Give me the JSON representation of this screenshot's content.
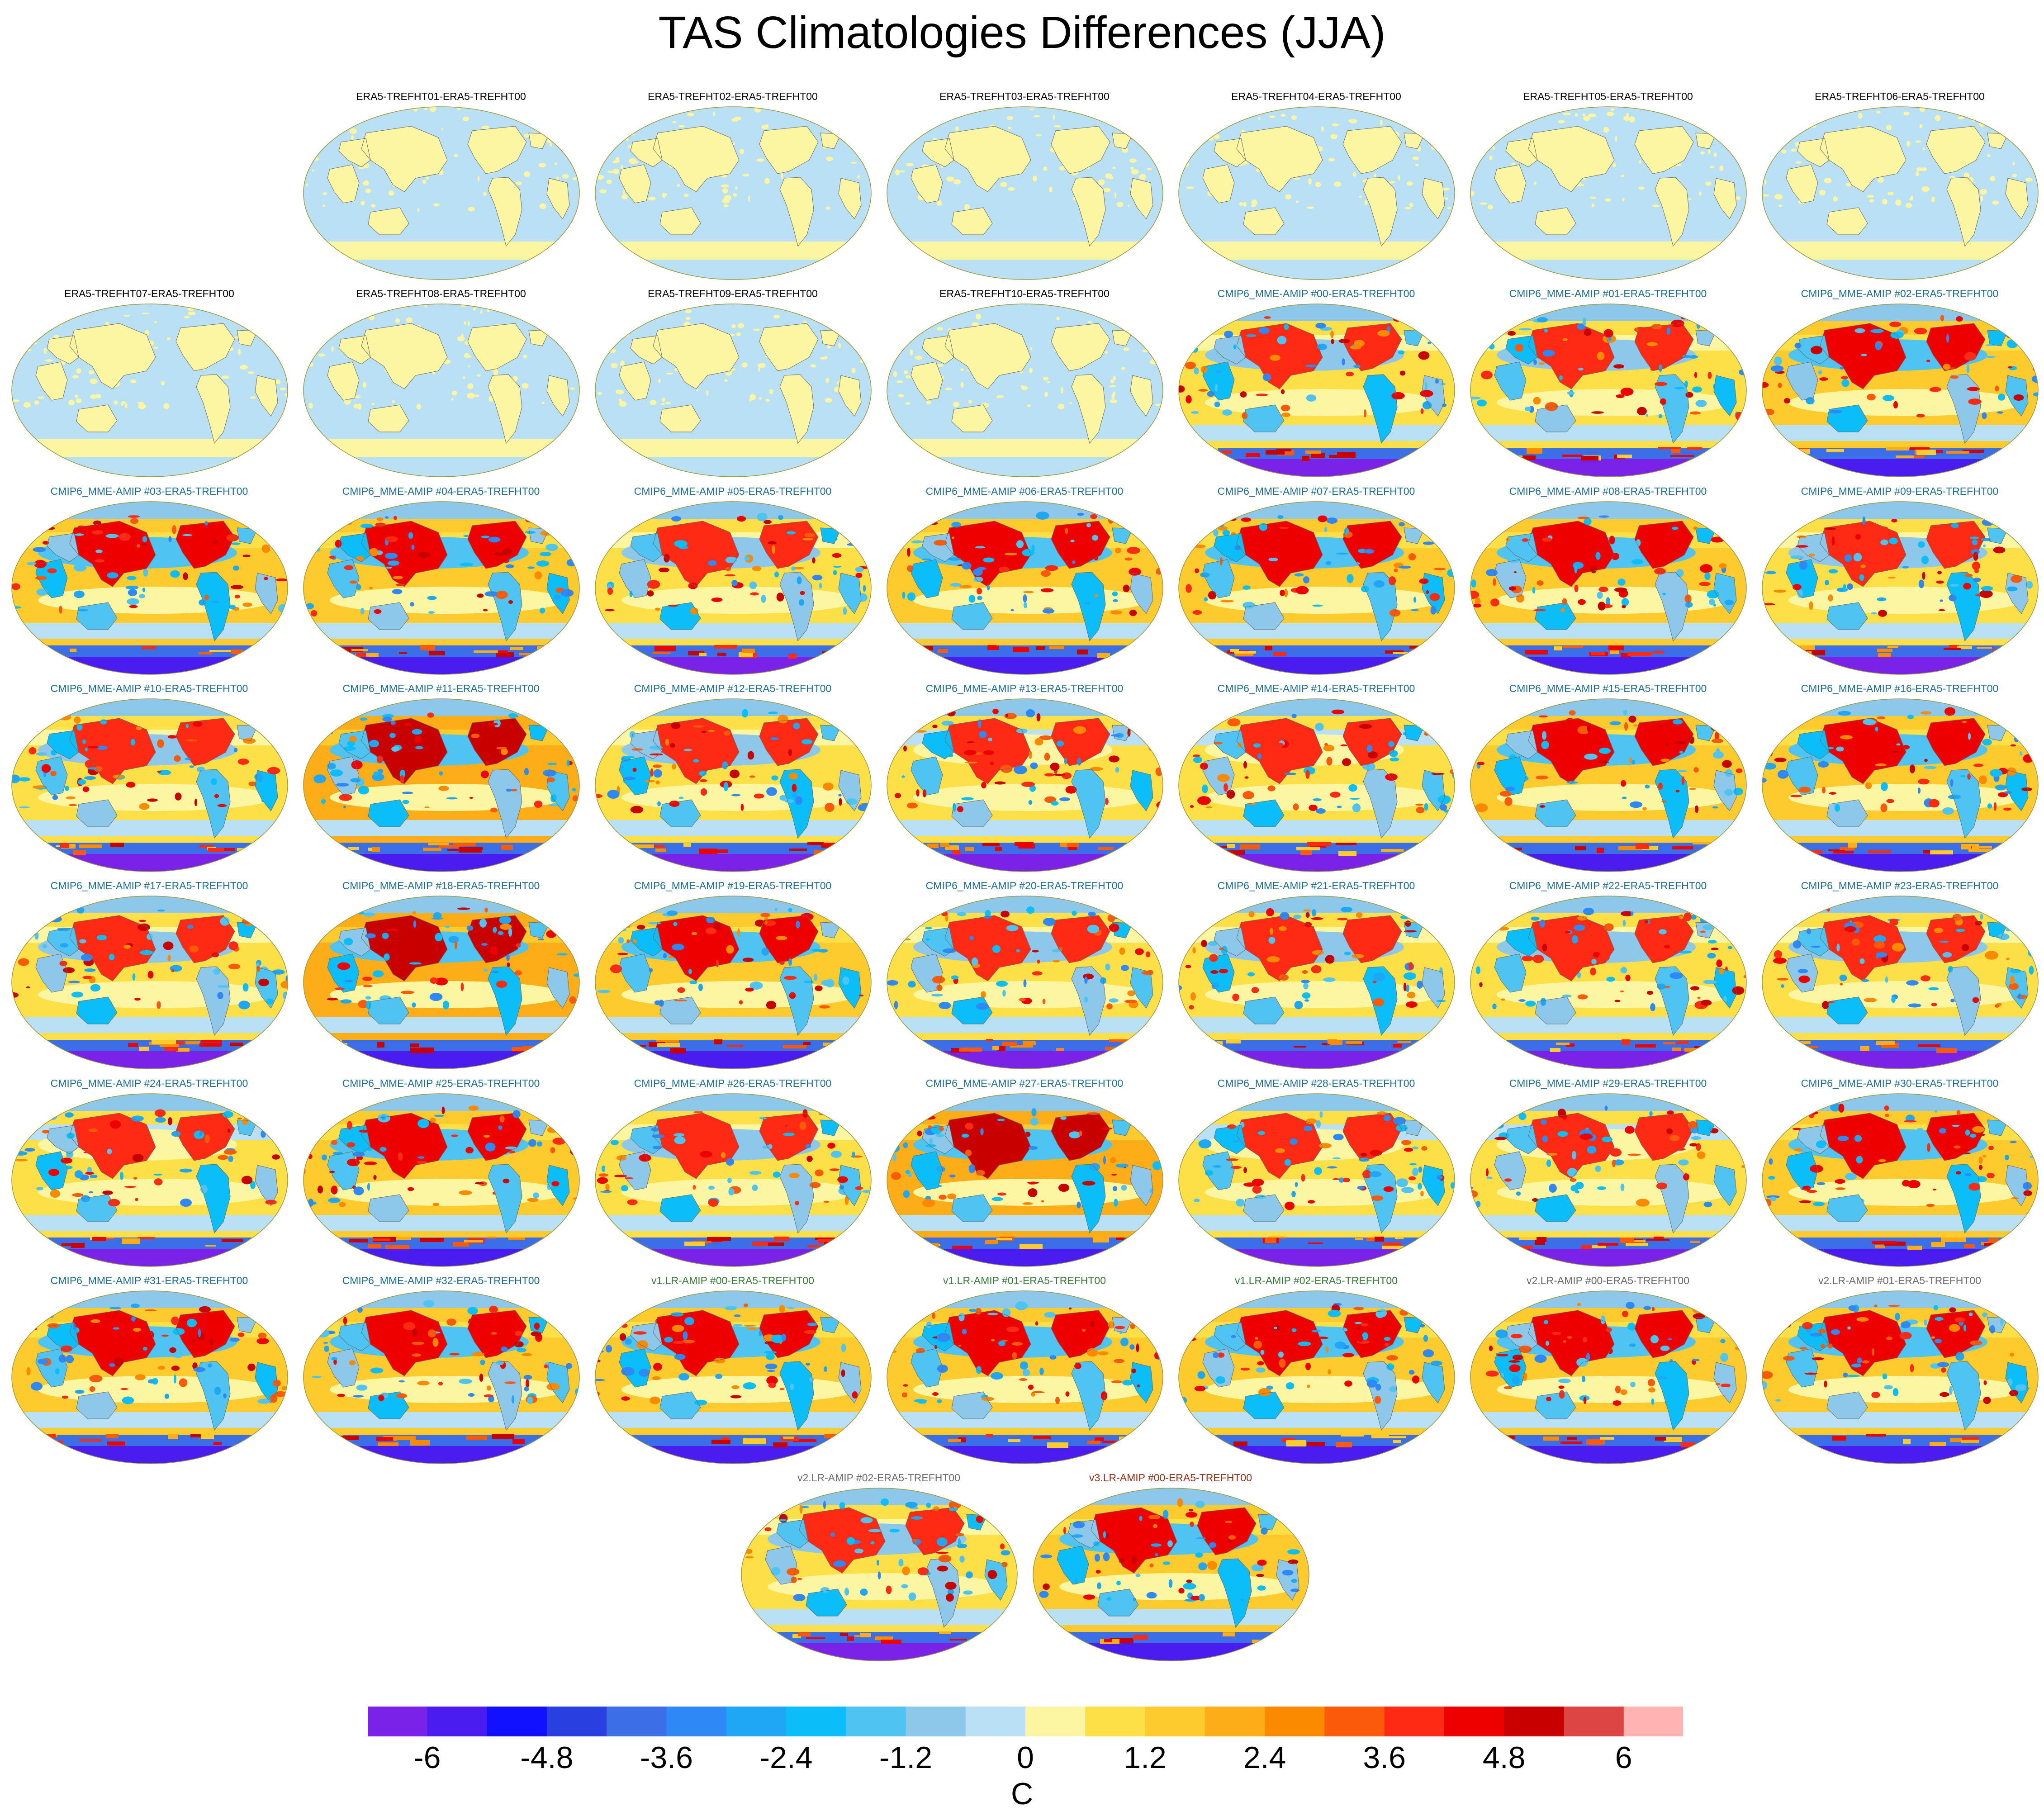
{
  "title": "TAS Climatologies Differences (JJA)",
  "panels": [
    {
      "title": "ERA5-TREFHT01-ERA5-TREFHT00",
      "color": "#000000",
      "style": "flat",
      "bias": 0
    },
    {
      "title": "ERA5-TREFHT02-ERA5-TREFHT00",
      "color": "#000000",
      "style": "flat",
      "bias": 0
    },
    {
      "title": "ERA5-TREFHT03-ERA5-TREFHT00",
      "color": "#000000",
      "style": "flat",
      "bias": 0
    },
    {
      "title": "ERA5-TREFHT04-ERA5-TREFHT00",
      "color": "#000000",
      "style": "flat",
      "bias": 0
    },
    {
      "title": "ERA5-TREFHT05-ERA5-TREFHT00",
      "color": "#000000",
      "style": "flat",
      "bias": 0
    },
    {
      "title": "ERA5-TREFHT06-ERA5-TREFHT00",
      "color": "#000000",
      "style": "flat",
      "bias": 0
    },
    {
      "title": "ERA5-TREFHT07-ERA5-TREFHT00",
      "color": "#000000",
      "style": "flat",
      "bias": 0
    },
    {
      "title": "ERA5-TREFHT08-ERA5-TREFHT00",
      "color": "#000000",
      "style": "flat",
      "bias": 0
    },
    {
      "title": "ERA5-TREFHT09-ERA5-TREFHT00",
      "color": "#000000",
      "style": "flat",
      "bias": 0
    },
    {
      "title": "ERA5-TREFHT10-ERA5-TREFHT00",
      "color": "#000000",
      "style": "flat",
      "bias": 0
    },
    {
      "title": "CMIP6_MME-AMIP  #00-ERA5-TREFHT00",
      "color": "#1f6e8c",
      "style": "anom",
      "bias": 0
    },
    {
      "title": "CMIP6_MME-AMIP  #01-ERA5-TREFHT00",
      "color": "#1f6e8c",
      "style": "anom",
      "bias": 0
    },
    {
      "title": "CMIP6_MME-AMIP  #02-ERA5-TREFHT00",
      "color": "#1f6e8c",
      "style": "anom",
      "bias": 1
    },
    {
      "title": "CMIP6_MME-AMIP  #03-ERA5-TREFHT00",
      "color": "#1f6e8c",
      "style": "anom",
      "bias": 1
    },
    {
      "title": "CMIP6_MME-AMIP  #04-ERA5-TREFHT00",
      "color": "#1f6e8c",
      "style": "anom",
      "bias": 1
    },
    {
      "title": "CMIP6_MME-AMIP  #05-ERA5-TREFHT00",
      "color": "#1f6e8c",
      "style": "anom",
      "bias": 0
    },
    {
      "title": "CMIP6_MME-AMIP  #06-ERA5-TREFHT00",
      "color": "#1f6e8c",
      "style": "anom",
      "bias": 1
    },
    {
      "title": "CMIP6_MME-AMIP  #07-ERA5-TREFHT00",
      "color": "#1f6e8c",
      "style": "anom",
      "bias": 1
    },
    {
      "title": "CMIP6_MME-AMIP  #08-ERA5-TREFHT00",
      "color": "#1f6e8c",
      "style": "anom",
      "bias": 1
    },
    {
      "title": "CMIP6_MME-AMIP  #09-ERA5-TREFHT00",
      "color": "#1f6e8c",
      "style": "anom",
      "bias": 0
    },
    {
      "title": "CMIP6_MME-AMIP  #10-ERA5-TREFHT00",
      "color": "#1f6e8c",
      "style": "anom",
      "bias": 0
    },
    {
      "title": "CMIP6_MME-AMIP  #11-ERA5-TREFHT00",
      "color": "#1f6e8c",
      "style": "anom",
      "bias": 2
    },
    {
      "title": "CMIP6_MME-AMIP  #12-ERA5-TREFHT00",
      "color": "#1f6e8c",
      "style": "anom",
      "bias": 0
    },
    {
      "title": "CMIP6_MME-AMIP  #13-ERA5-TREFHT00",
      "color": "#1f6e8c",
      "style": "anom",
      "bias": -1
    },
    {
      "title": "CMIP6_MME-AMIP  #14-ERA5-TREFHT00",
      "color": "#1f6e8c",
      "style": "anom",
      "bias": -1
    },
    {
      "title": "CMIP6_MME-AMIP  #15-ERA5-TREFHT00",
      "color": "#1f6e8c",
      "style": "anom",
      "bias": 1
    },
    {
      "title": "CMIP6_MME-AMIP  #16-ERA5-TREFHT00",
      "color": "#1f6e8c",
      "style": "anom",
      "bias": 1
    },
    {
      "title": "CMIP6_MME-AMIP  #17-ERA5-TREFHT00",
      "color": "#1f6e8c",
      "style": "anom",
      "bias": 0
    },
    {
      "title": "CMIP6_MME-AMIP  #18-ERA5-TREFHT00",
      "color": "#1f6e8c",
      "style": "anom",
      "bias": 2
    },
    {
      "title": "CMIP6_MME-AMIP  #19-ERA5-TREFHT00",
      "color": "#1f6e8c",
      "style": "anom",
      "bias": 1
    },
    {
      "title": "CMIP6_MME-AMIP  #20-ERA5-TREFHT00",
      "color": "#1f6e8c",
      "style": "anom",
      "bias": 0
    },
    {
      "title": "CMIP6_MME-AMIP  #21-ERA5-TREFHT00",
      "color": "#1f6e8c",
      "style": "anom",
      "bias": 0
    },
    {
      "title": "CMIP6_MME-AMIP  #22-ERA5-TREFHT00",
      "color": "#1f6e8c",
      "style": "anom",
      "bias": 0
    },
    {
      "title": "CMIP6_MME-AMIP  #23-ERA5-TREFHT00",
      "color": "#1f6e8c",
      "style": "anom",
      "bias": 0
    },
    {
      "title": "CMIP6_MME-AMIP  #24-ERA5-TREFHT00",
      "color": "#1f6e8c",
      "style": "anom",
      "bias": -1
    },
    {
      "title": "CMIP6_MME-AMIP  #25-ERA5-TREFHT00",
      "color": "#1f6e8c",
      "style": "anom",
      "bias": 1
    },
    {
      "title": "CMIP6_MME-AMIP  #26-ERA5-TREFHT00",
      "color": "#1f6e8c",
      "style": "anom",
      "bias": 0
    },
    {
      "title": "CMIP6_MME-AMIP  #27-ERA5-TREFHT00",
      "color": "#1f6e8c",
      "style": "anom",
      "bias": 2
    },
    {
      "title": "CMIP6_MME-AMIP  #28-ERA5-TREFHT00",
      "color": "#1f6e8c",
      "style": "anom",
      "bias": -1
    },
    {
      "title": "CMIP6_MME-AMIP  #29-ERA5-TREFHT00",
      "color": "#1f6e8c",
      "style": "anom",
      "bias": -1
    },
    {
      "title": "CMIP6_MME-AMIP  #30-ERA5-TREFHT00",
      "color": "#1f6e8c",
      "style": "anom",
      "bias": 1
    },
    {
      "title": "CMIP6_MME-AMIP  #31-ERA5-TREFHT00",
      "color": "#1f6e8c",
      "style": "anom",
      "bias": 1
    },
    {
      "title": "CMIP6_MME-AMIP  #32-ERA5-TREFHT00",
      "color": "#1f6e8c",
      "style": "anom",
      "bias": 1
    },
    {
      "title": "v1.LR-AMIP  #00-ERA5-TREFHT00",
      "color": "#3a7a3a",
      "style": "anom",
      "bias": 1
    },
    {
      "title": "v1.LR-AMIP  #01-ERA5-TREFHT00",
      "color": "#3a7a3a",
      "style": "anom",
      "bias": 1
    },
    {
      "title": "v1.LR-AMIP  #02-ERA5-TREFHT00",
      "color": "#3a7a3a",
      "style": "anom",
      "bias": 1
    },
    {
      "title": "v2.LR-AMIP  #00-ERA5-TREFHT00",
      "color": "#6b6b6b",
      "style": "anom",
      "bias": 1
    },
    {
      "title": "v2.LR-AMIP  #01-ERA5-TREFHT00",
      "color": "#6b6b6b",
      "style": "anom",
      "bias": 1
    },
    {
      "title": "v2.LR-AMIP  #02-ERA5-TREFHT00",
      "color": "#6b6b6b",
      "style": "anom",
      "bias": 0
    },
    {
      "title": "v3.LR-AMIP  #00-ERA5-TREFHT00",
      "color": "#8b2e16",
      "style": "anom",
      "bias": 1
    }
  ],
  "colorbar": {
    "colors": [
      "#7b22e8",
      "#4a1cf0",
      "#1111ff",
      "#2a3fe0",
      "#3c6ee8",
      "#2e88f5",
      "#1fa6f5",
      "#0bbdf8",
      "#4fc4f2",
      "#8dc8ea",
      "#b9e0f5",
      "#fcf6a2",
      "#fde047",
      "#fdcb2e",
      "#fcad17",
      "#fc8a00",
      "#fa5a0a",
      "#ff2a14",
      "#ee0000",
      "#c80000",
      "#dd4444",
      "#ffb3b3"
    ],
    "tick_labels": [
      "-6",
      "-4.8",
      "-3.6",
      "-2.4",
      "-1.2",
      "0",
      "1.2",
      "2.4",
      "3.6",
      "4.8",
      "6"
    ],
    "units": "C"
  }
}
